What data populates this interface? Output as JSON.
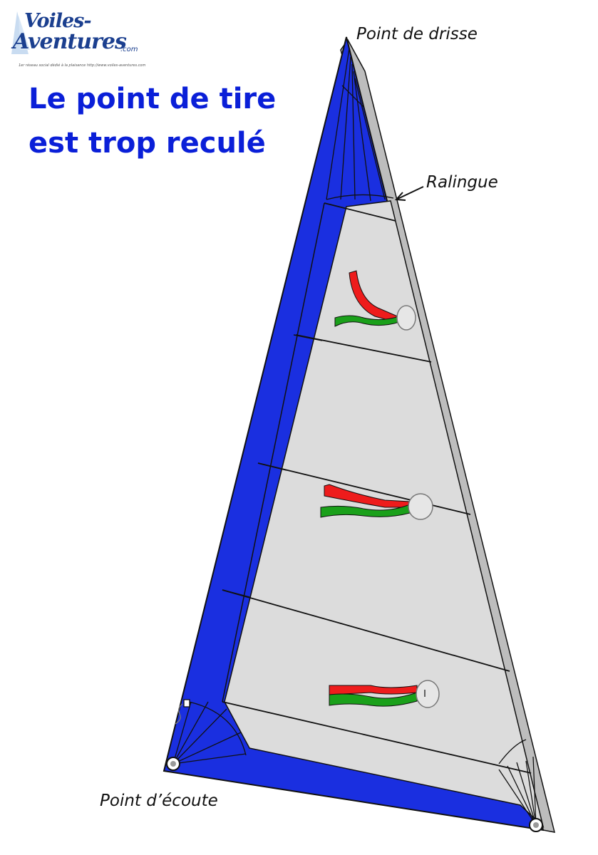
{
  "logo": {
    "text_top": "Voiles-",
    "text_bottom": "Aventures",
    "suffix": ".com",
    "tagline": "1er réseau social dédié à la plaisance   http://www.voiles-aventures.com"
  },
  "title": {
    "line1": "Le point de tire",
    "line2": "est trop reculé"
  },
  "labels": {
    "halyard": "Point de drisse",
    "luff": "Ralingue",
    "clew": "Point d’écoute"
  },
  "colors": {
    "title": "#0a1fd8",
    "leech_band": "#1a2fe0",
    "sail_cloth": "#dcdcdc",
    "luff_tape": "#bdbdbd",
    "telltale_red": "#ee1c1c",
    "telltale_green": "#1aa01a"
  },
  "icons": [
    "sail-icon",
    "clew-ring-icon",
    "tack-ring-icon",
    "telltale-icon"
  ]
}
